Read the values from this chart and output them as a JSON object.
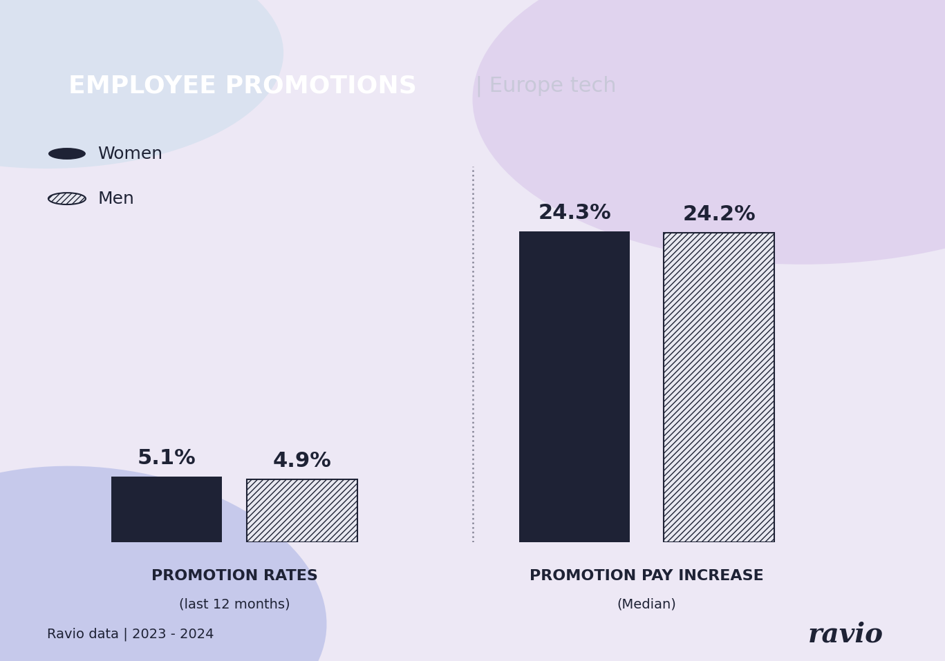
{
  "title_bold": "EMPLOYEE PROMOTIONS",
  "title_light": " | Europe tech",
  "title_bg_color": "#1e2235",
  "title_text_color_bold": "#ffffff",
  "title_text_color_light": "#c8c8d8",
  "bar_color_women": "#1e2235",
  "bar_color_men_face": "#e8e8f0",
  "bar_color_men_hatch": "#1e2235",
  "hatch_pattern": "////",
  "promotion_rates_women": 5.1,
  "promotion_rates_men": 4.9,
  "promotion_pay_women": 24.3,
  "promotion_pay_men": 24.2,
  "label_rates": "PROMOTION RATES",
  "label_rates_sub": "(last 12 months)",
  "label_pay": "PROMOTION PAY INCREASE",
  "label_pay_sub": "(Median)",
  "legend_women": "Women",
  "legend_men": "Men",
  "footer_left": "Ravio data | 2023 - 2024",
  "footer_right": "ravio",
  "bg_color": "#ede8f5",
  "text_color_dark": "#1e2235",
  "blob1_color": "#d4c0e8",
  "blob2_color": "#b8d8e8",
  "blob3_color": "#8899dd",
  "divider_color": "#888899"
}
